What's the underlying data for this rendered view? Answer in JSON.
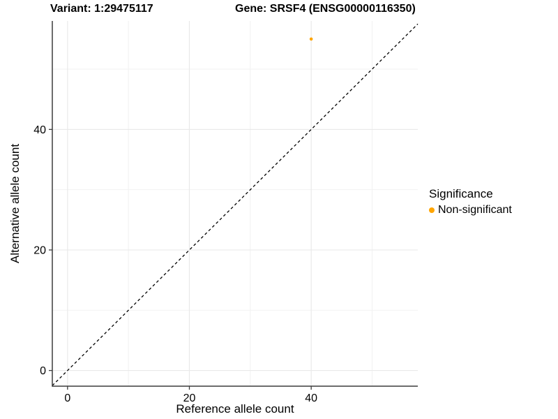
{
  "chart_data": {
    "type": "scatter",
    "title_left": "Variant: 1:29475117",
    "title_right": "Gene: SRSF4 (ENSG00000116350)",
    "xlabel": "Reference allele count",
    "ylabel": "Alternative allele count",
    "xlim": [
      -2.5,
      57.5
    ],
    "ylim": [
      -2.6,
      58
    ],
    "x_ticks": [
      0,
      20,
      40
    ],
    "y_ticks": [
      0,
      20,
      40
    ],
    "x_minor_ticks": [
      10,
      30,
      50
    ],
    "y_minor_ticks": [
      10,
      30,
      50
    ],
    "grid": "on",
    "legend_position": "right",
    "identity_line": {
      "style": "dashed",
      "x1": -2.5,
      "y1": -2.5,
      "x2": 57.5,
      "y2": 57.5
    },
    "series": [
      {
        "name": "Non-significant",
        "color": "#FFA500",
        "points": [
          {
            "x": 40,
            "y": 55
          }
        ]
      }
    ]
  },
  "legend": {
    "title": "Significance",
    "items": [
      {
        "label": "Non-significant",
        "color": "#FFA500"
      }
    ]
  },
  "colors": {
    "background": "#FFFFFF",
    "grid_major": "#E9E9E9",
    "grid_minor": "#F2F2F2",
    "axis_line": "#3C3C3C",
    "tick": "#3C3C3C",
    "text": "#000000",
    "identity_line": "#000000",
    "point": "#FFA500"
  }
}
